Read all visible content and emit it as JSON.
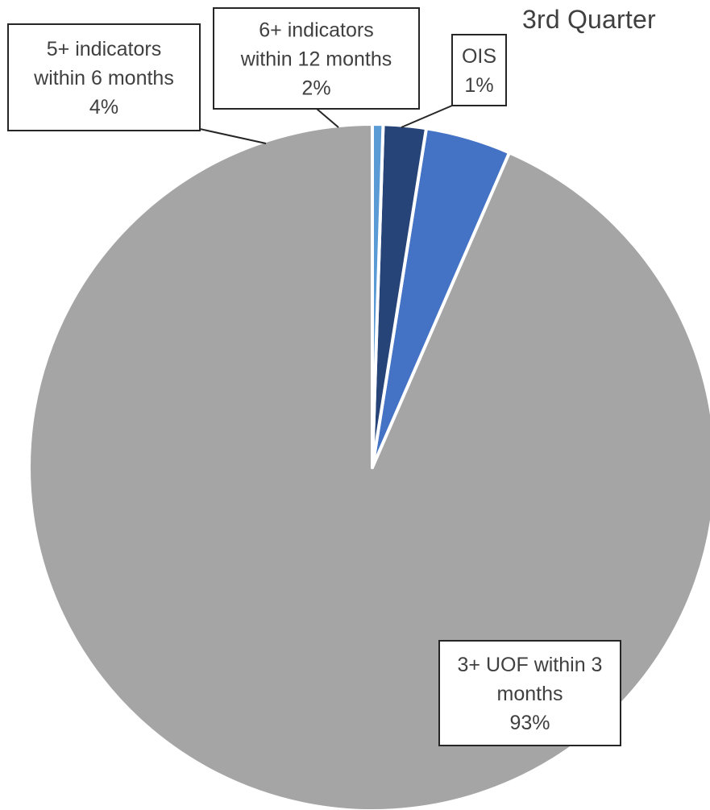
{
  "chart_data": {
    "type": "pie",
    "title": "3rd Quarter",
    "slices": [
      {
        "label_lines": [
          "3+ UOF within 3",
          "months",
          "93%"
        ],
        "value": 93,
        "color": "#a5a5a5"
      },
      {
        "label_lines": [
          "5+ indicators",
          "within 6 months",
          "4%"
        ],
        "value": 4,
        "color": "#4472c4"
      },
      {
        "label_lines": [
          "6+ indicators",
          "within 12 months",
          "2%"
        ],
        "value": 2,
        "color": "#264478"
      },
      {
        "label_lines": [
          "OIS",
          "1%"
        ],
        "value": 0.5,
        "color": "#5b9bd5"
      }
    ],
    "start": "top",
    "direction": "counterclockwise",
    "legend": "none"
  }
}
